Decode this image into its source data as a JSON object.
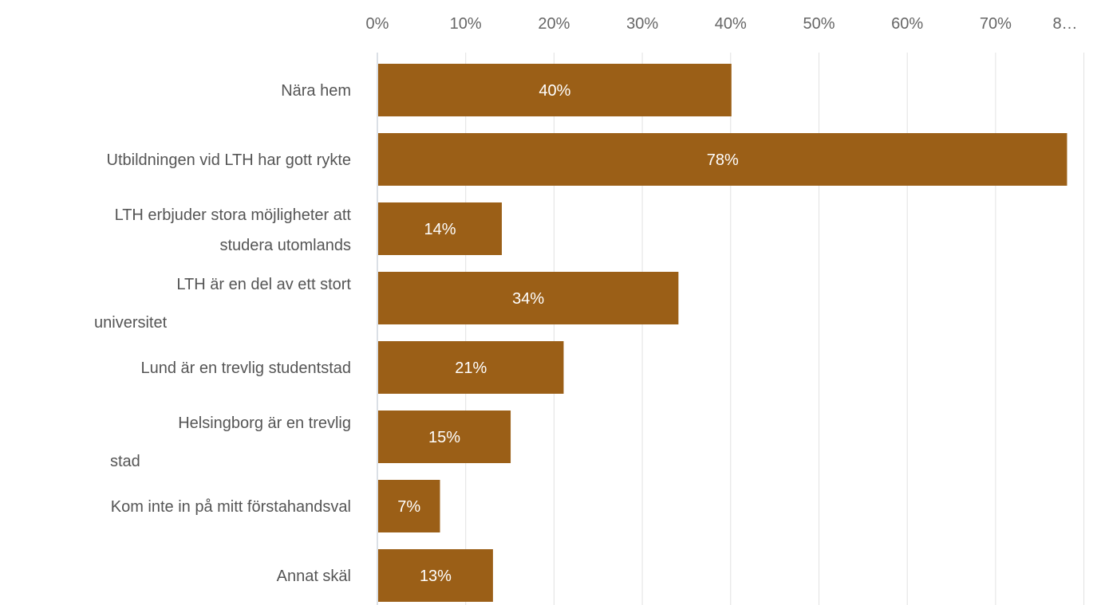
{
  "chart_data": {
    "type": "bar",
    "orientation": "horizontal",
    "title": "",
    "xlabel": "",
    "ylabel": "",
    "xlim": [
      0,
      80
    ],
    "grid": true,
    "x_ticks": [
      "0%",
      "10%",
      "20%",
      "30%",
      "40%",
      "50%",
      "60%",
      "70%",
      "8…"
    ],
    "categories": [
      [
        "Nära hem"
      ],
      [
        "Utbildningen vid LTH har gott rykte"
      ],
      [
        "LTH erbjuder stora möjligheter att",
        "studera utomlands"
      ],
      [
        "LTH är en del av ett stort",
        "universitet"
      ],
      [
        "Lund är en trevlig studentstad"
      ],
      [
        "Helsingborg är en trevlig",
        "stad"
      ],
      [
        "Kom inte in på mitt förstahandsval"
      ],
      [
        "Annat skäl"
      ]
    ],
    "values": [
      40,
      78,
      14,
      34,
      21,
      15,
      7,
      13
    ],
    "data_labels": [
      "40%",
      "78%",
      "14%",
      "34%",
      "21%",
      "15%",
      "7%",
      "13%"
    ],
    "bar_color": "#9b5f17"
  }
}
